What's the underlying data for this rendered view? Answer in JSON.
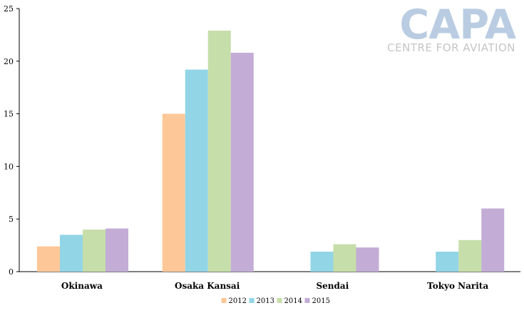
{
  "logo": {
    "main": "CAPA",
    "sub": "CENTRE FOR AVIATION"
  },
  "chart_data": {
    "type": "bar",
    "title": "",
    "xlabel": "",
    "ylabel": "",
    "ylim": [
      0,
      25
    ],
    "yticks": [
      0,
      5,
      10,
      15,
      20,
      25
    ],
    "grid": false,
    "legend_position": "bottom",
    "categories": [
      "Okinawa",
      "Osaka Kansai",
      "Sendai",
      "Tokyo Narita"
    ],
    "series": [
      {
        "name": "2012",
        "color": "#fdc797",
        "values": [
          2.4,
          15.0,
          null,
          null
        ]
      },
      {
        "name": "2013",
        "color": "#92d5e6",
        "values": [
          3.5,
          19.2,
          1.9,
          1.9
        ]
      },
      {
        "name": "2014",
        "color": "#c6deaa",
        "values": [
          4.0,
          22.9,
          2.6,
          3.0
        ]
      },
      {
        "name": "2015",
        "color": "#c3acd6",
        "values": [
          4.1,
          20.8,
          2.3,
          6.0
        ]
      }
    ]
  }
}
